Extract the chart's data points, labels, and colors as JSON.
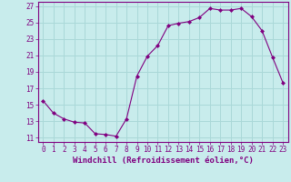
{
  "x": [
    0,
    1,
    2,
    3,
    4,
    5,
    6,
    7,
    8,
    9,
    10,
    11,
    12,
    13,
    14,
    15,
    16,
    17,
    18,
    19,
    20,
    21,
    22,
    23
  ],
  "y": [
    15.5,
    14.0,
    13.3,
    12.9,
    12.8,
    11.5,
    11.4,
    11.2,
    13.3,
    18.5,
    20.9,
    22.2,
    24.6,
    24.9,
    25.1,
    25.6,
    26.7,
    26.5,
    26.5,
    26.7,
    25.7,
    24.0,
    20.8,
    17.7
  ],
  "line_color": "#800080",
  "marker": "D",
  "marker_size": 2,
  "bg_color": "#c8ecec",
  "grid_color": "#aad8d8",
  "xlabel": "Windchill (Refroidissement éolien,°C)",
  "xlabel_color": "#800080",
  "tick_color": "#800080",
  "spine_color": "#800080",
  "xlim": [
    -0.5,
    23.5
  ],
  "ylim": [
    10.5,
    27.5
  ],
  "yticks": [
    11,
    13,
    15,
    17,
    19,
    21,
    23,
    25,
    27
  ],
  "xticks": [
    0,
    1,
    2,
    3,
    4,
    5,
    6,
    7,
    8,
    9,
    10,
    11,
    12,
    13,
    14,
    15,
    16,
    17,
    18,
    19,
    20,
    21,
    22,
    23
  ],
  "tick_fontsize": 5.5,
  "xlabel_fontsize": 6.5
}
